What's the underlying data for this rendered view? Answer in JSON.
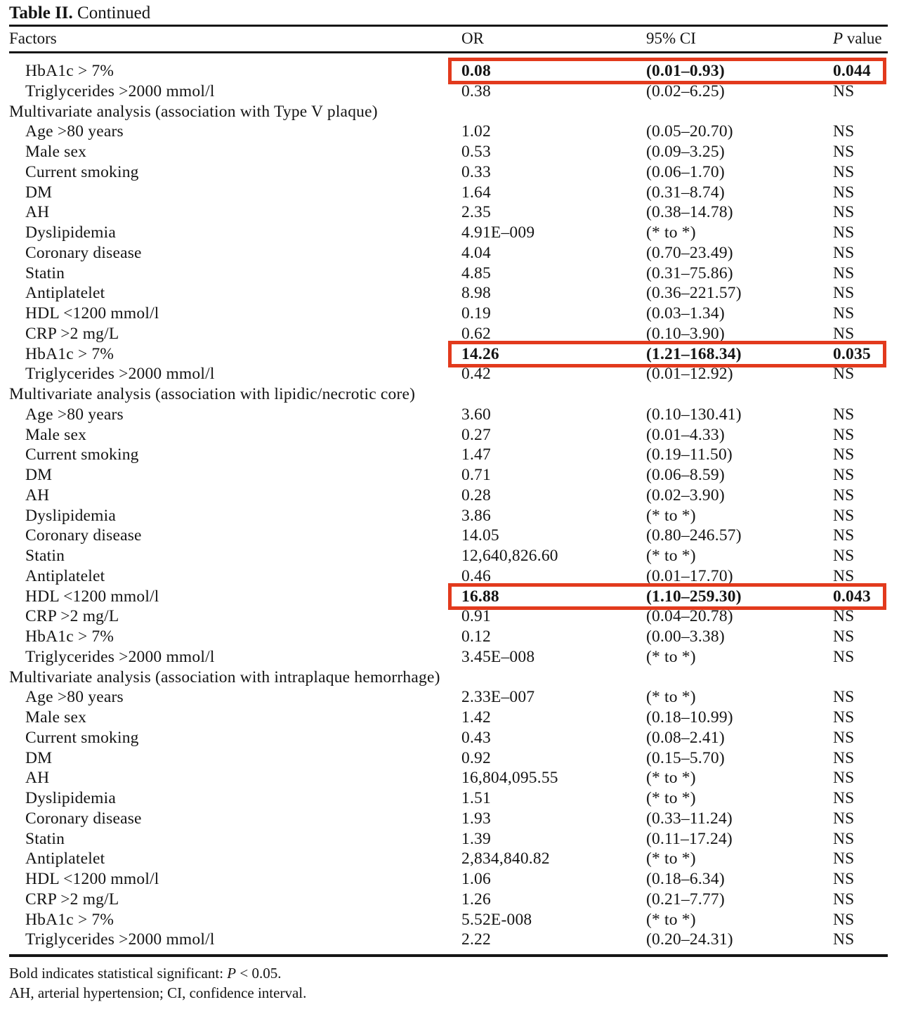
{
  "title": {
    "bold": "Table II.",
    "regular": " Continued"
  },
  "table": {
    "columns": {
      "factors": "Factors",
      "or": "OR",
      "ci": "95% CI",
      "p_italic": "P",
      "p_rest": " value"
    },
    "rows": [
      {
        "type": "data",
        "factor": "HbA1c > 7%",
        "or": "0.08",
        "ci": "(0.01–0.93)",
        "p": "0.044",
        "highlight": true
      },
      {
        "type": "data",
        "factor": "Triglycerides >2000 mmol/l",
        "or": "0.38",
        "ci": "(0.02–6.25)",
        "p": "NS"
      },
      {
        "type": "section",
        "factor": "Multivariate analysis (association with Type V plaque)"
      },
      {
        "type": "data",
        "factor": "Age >80 years",
        "or": "1.02",
        "ci": "(0.05–20.70)",
        "p": "NS"
      },
      {
        "type": "data",
        "factor": "Male sex",
        "or": "0.53",
        "ci": "(0.09–3.25)",
        "p": "NS"
      },
      {
        "type": "data",
        "factor": "Current smoking",
        "or": "0.33",
        "ci": "(0.06–1.70)",
        "p": "NS"
      },
      {
        "type": "data",
        "factor": "DM",
        "or": "1.64",
        "ci": "(0.31–8.74)",
        "p": "NS"
      },
      {
        "type": "data",
        "factor": "AH",
        "or": "2.35",
        "ci": "(0.38–14.78)",
        "p": "NS"
      },
      {
        "type": "data",
        "factor": "Dyslipidemia",
        "or": "4.91E–009",
        "ci": "(* to *)",
        "p": "NS"
      },
      {
        "type": "data",
        "factor": "Coronary disease",
        "or": "4.04",
        "ci": "(0.70–23.49)",
        "p": "NS"
      },
      {
        "type": "data",
        "factor": "Statin",
        "or": "4.85",
        "ci": "(0.31–75.86)",
        "p": "NS"
      },
      {
        "type": "data",
        "factor": "Antiplatelet",
        "or": "8.98",
        "ci": "(0.36–221.57)",
        "p": "NS"
      },
      {
        "type": "data",
        "factor": "HDL <1200 mmol/l",
        "or": "0.19",
        "ci": "(0.03–1.34)",
        "p": "NS"
      },
      {
        "type": "data",
        "factor": "CRP >2 mg/L",
        "or": "0.62",
        "ci": "(0.10–3.90)",
        "p": "NS"
      },
      {
        "type": "data",
        "factor": "HbA1c > 7%",
        "or": "14.26",
        "ci": "(1.21–168.34)",
        "p": "0.035",
        "highlight": true
      },
      {
        "type": "data",
        "factor": "Triglycerides >2000 mmol/l",
        "or": "0.42",
        "ci": "(0.01–12.92)",
        "p": "NS"
      },
      {
        "type": "section",
        "factor": "Multivariate analysis (association with lipidic/necrotic core)"
      },
      {
        "type": "data",
        "factor": "Age >80 years",
        "or": "3.60",
        "ci": "(0.10–130.41)",
        "p": "NS"
      },
      {
        "type": "data",
        "factor": "Male sex",
        "or": "0.27",
        "ci": "(0.01–4.33)",
        "p": "NS"
      },
      {
        "type": "data",
        "factor": "Current smoking",
        "or": "1.47",
        "ci": "(0.19–11.50)",
        "p": "NS"
      },
      {
        "type": "data",
        "factor": "DM",
        "or": "0.71",
        "ci": "(0.06–8.59)",
        "p": "NS"
      },
      {
        "type": "data",
        "factor": "AH",
        "or": "0.28",
        "ci": "(0.02–3.90)",
        "p": "NS"
      },
      {
        "type": "data",
        "factor": "Dyslipidemia",
        "or": "3.86",
        "ci": "(* to *)",
        "p": "NS"
      },
      {
        "type": "data",
        "factor": "Coronary disease",
        "or": "14.05",
        "ci": "(0.80–246.57)",
        "p": "NS"
      },
      {
        "type": "data",
        "factor": "Statin",
        "or": "12,640,826.60",
        "ci": "(* to *)",
        "p": "NS"
      },
      {
        "type": "data",
        "factor": "Antiplatelet",
        "or": "0.46",
        "ci": "(0.01–17.70)",
        "p": "NS"
      },
      {
        "type": "data",
        "factor": "HDL <1200 mmol/l",
        "or": "16.88",
        "ci": "(1.10–259.30)",
        "p": "0.043",
        "highlight": true
      },
      {
        "type": "data",
        "factor": "CRP >2 mg/L",
        "or": "0.91",
        "ci": "(0.04–20.78)",
        "p": "NS"
      },
      {
        "type": "data",
        "factor": "HbA1c > 7%",
        "or": "0.12",
        "ci": "(0.00–3.38)",
        "p": "NS"
      },
      {
        "type": "data",
        "factor": "Triglycerides >2000 mmol/l",
        "or": "3.45E–008",
        "ci": "(* to *)",
        "p": "NS"
      },
      {
        "type": "section",
        "factor": "Multivariate analysis (association with intraplaque hemorrhage)"
      },
      {
        "type": "data",
        "factor": "Age >80 years",
        "or": "2.33E–007",
        "ci": "(* to *)",
        "p": "NS"
      },
      {
        "type": "data",
        "factor": "Male sex",
        "or": "1.42",
        "ci": "(0.18–10.99)",
        "p": "NS"
      },
      {
        "type": "data",
        "factor": "Current smoking",
        "or": "0.43",
        "ci": "(0.08–2.41)",
        "p": "NS"
      },
      {
        "type": "data",
        "factor": "DM",
        "or": "0.92",
        "ci": "(0.15–5.70)",
        "p": "NS"
      },
      {
        "type": "data",
        "factor": "AH",
        "or": "16,804,095.55",
        "ci": "(* to *)",
        "p": "NS"
      },
      {
        "type": "data",
        "factor": "Dyslipidemia",
        "or": "1.51",
        "ci": "(* to *)",
        "p": "NS"
      },
      {
        "type": "data",
        "factor": "Coronary disease",
        "or": "1.93",
        "ci": "(0.33–11.24)",
        "p": "NS"
      },
      {
        "type": "data",
        "factor": "Statin",
        "or": "1.39",
        "ci": "(0.11–17.24)",
        "p": "NS"
      },
      {
        "type": "data",
        "factor": "Antiplatelet",
        "or": "2,834,840.82",
        "ci": "(* to *)",
        "p": "NS"
      },
      {
        "type": "data",
        "factor": "HDL <1200 mmol/l",
        "or": "1.06",
        "ci": "(0.18–6.34)",
        "p": "NS"
      },
      {
        "type": "data",
        "factor": "CRP >2 mg/L",
        "or": "1.26",
        "ci": "(0.21–7.77)",
        "p": "NS"
      },
      {
        "type": "data",
        "factor": "HbA1c > 7%",
        "or": "5.52E-008",
        "ci": "(* to *)",
        "p": "NS"
      },
      {
        "type": "data",
        "factor": "Triglycerides >2000 mmol/l",
        "or": "2.22",
        "ci": "(0.20–24.31)",
        "p": "NS"
      }
    ]
  },
  "footnotes": {
    "significance": {
      "prefix": "Bold indicates statistical significant: ",
      "italic": "P",
      "suffix": " < 0.05."
    },
    "abbreviations": "AH, arterial hypertension; CI, confidence interval."
  },
  "colors": {
    "highlight_border": "#e23a1d",
    "text": "#141414",
    "background": "#ffffff"
  }
}
